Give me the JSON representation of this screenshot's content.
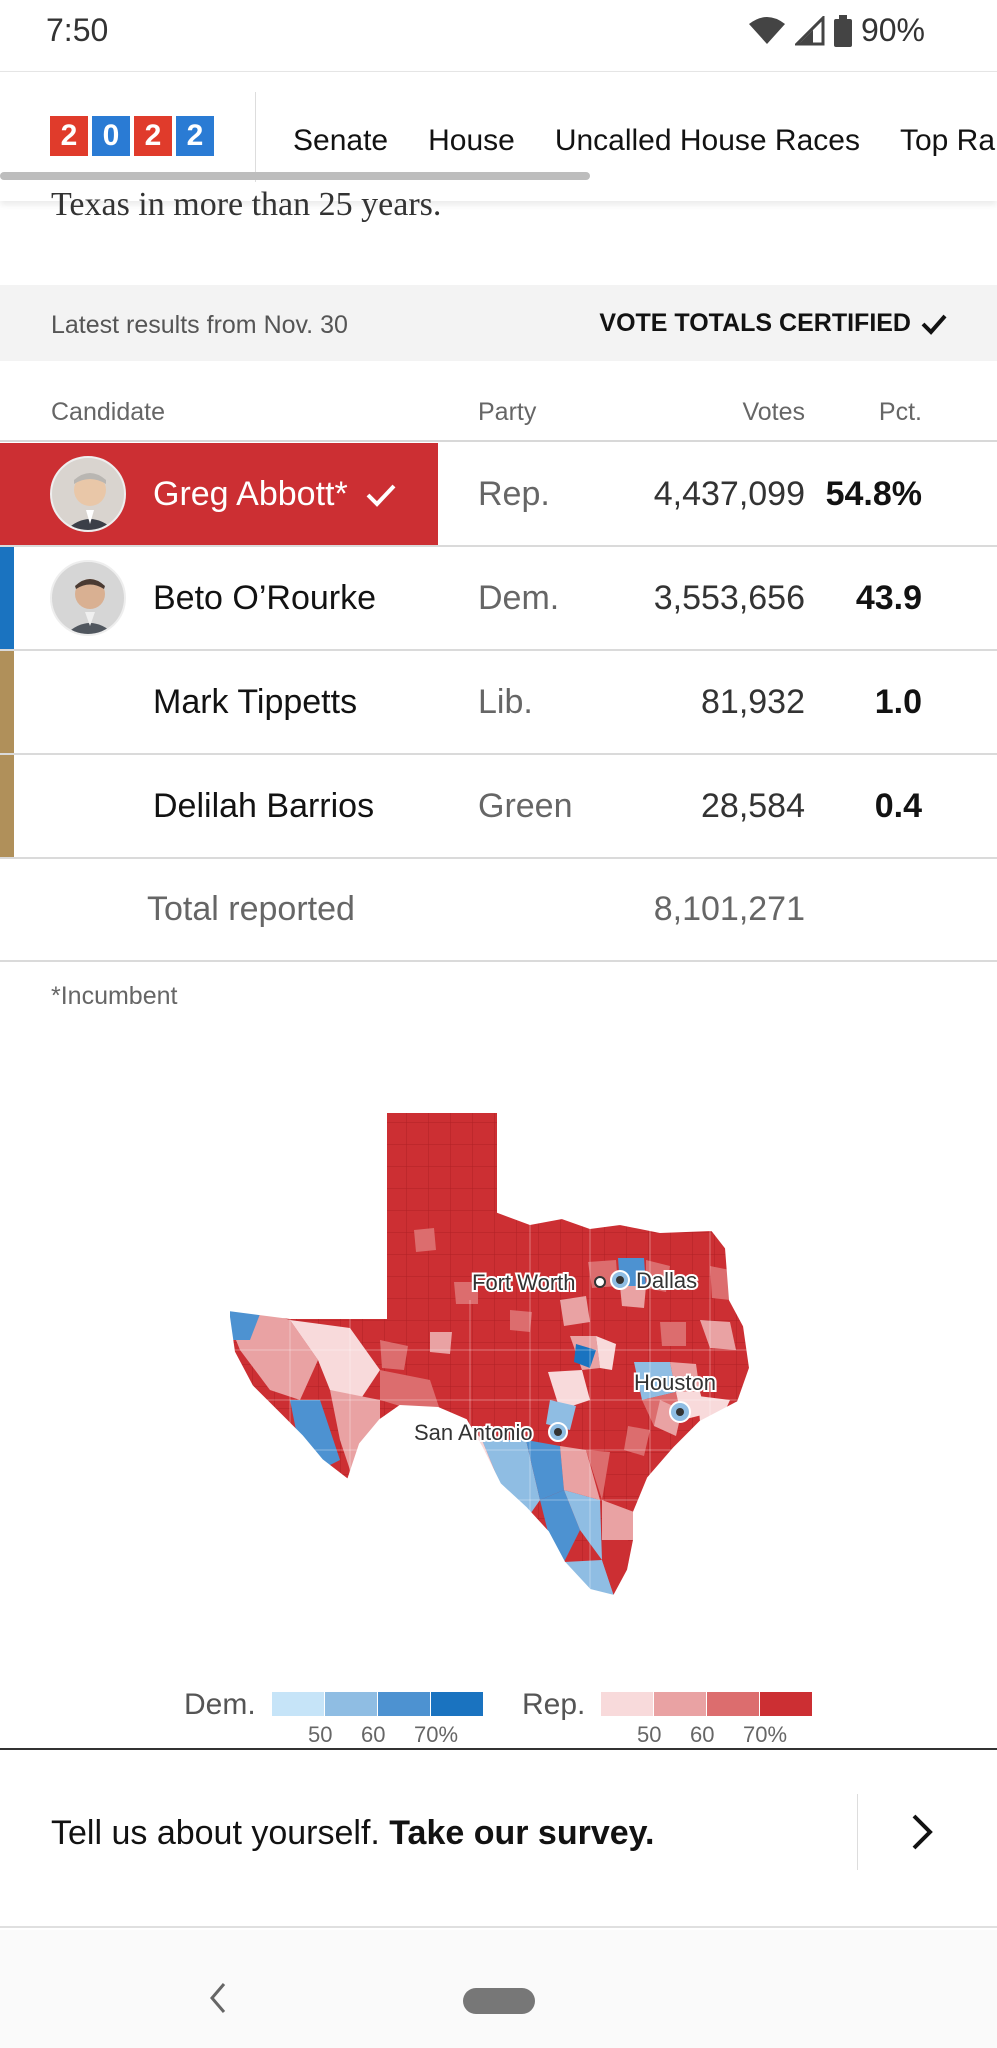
{
  "status_bar": {
    "time": "7:50",
    "battery": "90%"
  },
  "nav": {
    "logo_digits": [
      "2",
      "0",
      "2",
      "2"
    ],
    "items": [
      "Senate",
      "House",
      "Uncalled House Races",
      "Top Ra"
    ]
  },
  "intro_text": "Texas in more than 25 years.",
  "results_header": {
    "latest": "Latest results from Nov. 30",
    "status": "VOTE TOTALS CERTIFIED"
  },
  "table": {
    "headers": {
      "candidate": "Candidate",
      "party": "Party",
      "votes": "Votes",
      "pct": "Pct."
    },
    "rows": [
      {
        "name": "Greg Abbott*",
        "party": "Rep.",
        "votes": "4,437,099",
        "pct": "54.8%",
        "winner": true,
        "color": "#cc2f33"
      },
      {
        "name": "Beto O’Rourke",
        "party": "Dem.",
        "votes": "3,553,656",
        "pct": "43.9",
        "winner": false,
        "color": "#1a73c0"
      },
      {
        "name": "Mark Tippetts",
        "party": "Lib.",
        "votes": "81,932",
        "pct": "1.0",
        "winner": false,
        "color": "#b0905a"
      },
      {
        "name": "Delilah Barrios",
        "party": "Green",
        "votes": "28,584",
        "pct": "0.4",
        "winner": false,
        "color": "#b0905a"
      }
    ],
    "total_label": "Total reported",
    "total_votes": "8,101,271"
  },
  "incumbent_note": "*Incumbent",
  "map": {
    "cities": [
      "Fort Worth",
      "Dallas",
      "Houston",
      "San Antonio"
    ]
  },
  "legend": {
    "dem_label": "Dem.",
    "rep_label": "Rep.",
    "dem_colors": [
      "#c6e4f8",
      "#8fbde3",
      "#4d92d1",
      "#1a73c0"
    ],
    "rep_colors": [
      "#f8dadb",
      "#e9a2a3",
      "#dc6d6e",
      "#cc2f33"
    ],
    "ticks": [
      "50",
      "60",
      "70%"
    ]
  },
  "survey": {
    "prompt": "Tell us about yourself.",
    "cta": "Take our survey."
  }
}
